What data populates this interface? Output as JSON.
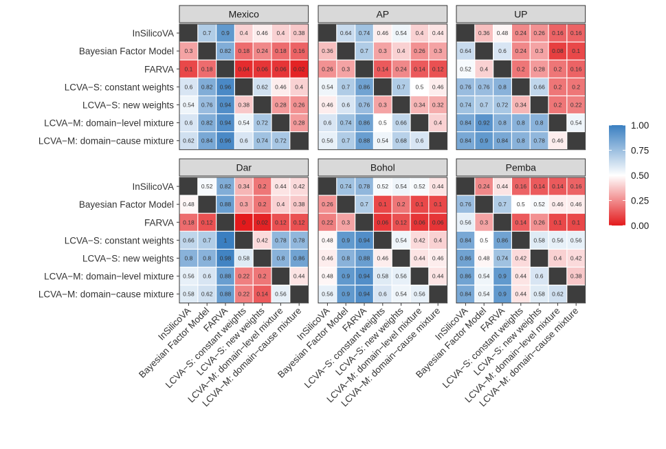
{
  "chart_data": {
    "type": "heatmap",
    "facet_layout": "2 rows x 3 columns",
    "row_labels": [
      "InSilicoVA",
      "Bayesian Factor Model",
      "FARVA",
      "LCVA−S: constant weights",
      "LCVA−S: new weights",
      "LCVA−M: domain−level mixture",
      "LCVA−M: domain−cause mixture"
    ],
    "col_labels": [
      "InSilicoVA",
      "Bayesian Factor Model",
      "FARVA",
      "LCVA−S: constant weights",
      "LCVA−S: new weights",
      "LCVA−M: domain−level mixture",
      "LCVA−M: domain−cause mixture"
    ],
    "color_scale": {
      "low": "#e31a1c",
      "mid": "#ffffff",
      "high": "#3a7fc1",
      "missing": "#3d3d3d",
      "midpoint": 0.5,
      "limits": [
        0,
        1
      ],
      "breaks": [
        "1.00",
        "0.75",
        "0.50",
        "0.25",
        "0.00"
      ],
      "legend_position": "right"
    },
    "panels": [
      {
        "title": "Mexico",
        "values": [
          [
            null,
            0.7,
            0.9,
            0.4,
            0.46,
            0.4,
            0.38
          ],
          [
            0.3,
            null,
            0.82,
            0.18,
            0.24,
            0.18,
            0.16
          ],
          [
            0.1,
            0.18,
            null,
            0.04,
            0.06,
            0.06,
            0.02
          ],
          [
            0.6,
            0.82,
            0.96,
            null,
            0.62,
            0.46,
            0.4
          ],
          [
            0.54,
            0.76,
            0.94,
            0.38,
            null,
            0.28,
            0.26
          ],
          [
            0.6,
            0.82,
            0.94,
            0.54,
            0.72,
            null,
            0.28
          ],
          [
            0.62,
            0.84,
            0.96,
            0.6,
            0.74,
            0.72,
            null
          ]
        ]
      },
      {
        "title": "AP",
        "values": [
          [
            null,
            0.64,
            0.74,
            0.46,
            0.54,
            0.4,
            0.44
          ],
          [
            0.36,
            null,
            0.7,
            0.3,
            0.4,
            0.26,
            0.3
          ],
          [
            0.26,
            0.3,
            null,
            0.14,
            0.24,
            0.14,
            0.12
          ],
          [
            0.54,
            0.7,
            0.86,
            null,
            0.7,
            0.5,
            0.46
          ],
          [
            0.46,
            0.6,
            0.76,
            0.3,
            null,
            0.34,
            0.32
          ],
          [
            0.6,
            0.74,
            0.86,
            0.5,
            0.66,
            null,
            0.4
          ],
          [
            0.56,
            0.7,
            0.88,
            0.54,
            0.68,
            0.6,
            null
          ]
        ]
      },
      {
        "title": "UP",
        "values": [
          [
            null,
            0.36,
            0.48,
            0.24,
            0.26,
            0.16,
            0.16
          ],
          [
            0.64,
            null,
            0.6,
            0.24,
            0.3,
            0.08,
            0.1
          ],
          [
            0.52,
            0.4,
            null,
            0.2,
            0.28,
            0.2,
            0.16
          ],
          [
            0.76,
            0.76,
            0.8,
            null,
            0.66,
            0.2,
            0.2
          ],
          [
            0.74,
            0.7,
            0.72,
            0.34,
            null,
            0.2,
            0.22
          ],
          [
            0.84,
            0.92,
            0.8,
            0.8,
            0.8,
            null,
            0.54
          ],
          [
            0.84,
            0.9,
            0.84,
            0.8,
            0.78,
            0.46,
            null
          ]
        ]
      },
      {
        "title": "Dar",
        "values": [
          [
            null,
            0.52,
            0.82,
            0.34,
            0.2,
            0.44,
            0.42
          ],
          [
            0.48,
            null,
            0.88,
            0.3,
            0.2,
            0.4,
            0.38
          ],
          [
            0.18,
            0.12,
            null,
            0.0,
            0.02,
            0.12,
            0.12
          ],
          [
            0.66,
            0.7,
            1,
            null,
            0.42,
            0.78,
            0.78
          ],
          [
            0.8,
            0.8,
            0.98,
            0.58,
            null,
            0.8,
            0.86
          ],
          [
            0.56,
            0.6,
            0.88,
            0.22,
            0.2,
            null,
            0.44
          ],
          [
            0.58,
            0.62,
            0.88,
            0.22,
            0.14,
            0.56,
            null
          ]
        ]
      },
      {
        "title": "Bohol",
        "values": [
          [
            null,
            0.74,
            0.78,
            0.52,
            0.54,
            0.52,
            0.44
          ],
          [
            0.26,
            null,
            0.7,
            0.1,
            0.2,
            0.1,
            0.1
          ],
          [
            0.22,
            0.3,
            null,
            0.06,
            0.12,
            0.06,
            0.06
          ],
          [
            0.48,
            0.9,
            0.94,
            null,
            0.54,
            0.42,
            0.4
          ],
          [
            0.46,
            0.8,
            0.88,
            0.46,
            null,
            0.44,
            0.46
          ],
          [
            0.48,
            0.9,
            0.94,
            0.58,
            0.56,
            null,
            0.44
          ],
          [
            0.56,
            0.9,
            0.94,
            0.6,
            0.54,
            0.56,
            null
          ]
        ]
      },
      {
        "title": "Pemba",
        "values": [
          [
            null,
            0.24,
            0.44,
            0.16,
            0.14,
            0.14,
            0.16
          ],
          [
            0.76,
            null,
            0.7,
            0.5,
            0.52,
            0.46,
            0.46
          ],
          [
            0.56,
            0.3,
            null,
            0.14,
            0.26,
            0.1,
            0.1
          ],
          [
            0.84,
            0.5,
            0.86,
            null,
            0.58,
            0.56,
            0.56
          ],
          [
            0.86,
            0.48,
            0.74,
            0.42,
            null,
            0.4,
            0.42
          ],
          [
            0.86,
            0.54,
            0.9,
            0.44,
            0.6,
            null,
            0.38
          ],
          [
            0.84,
            0.54,
            0.9,
            0.44,
            0.58,
            0.62,
            null
          ]
        ]
      }
    ]
  }
}
